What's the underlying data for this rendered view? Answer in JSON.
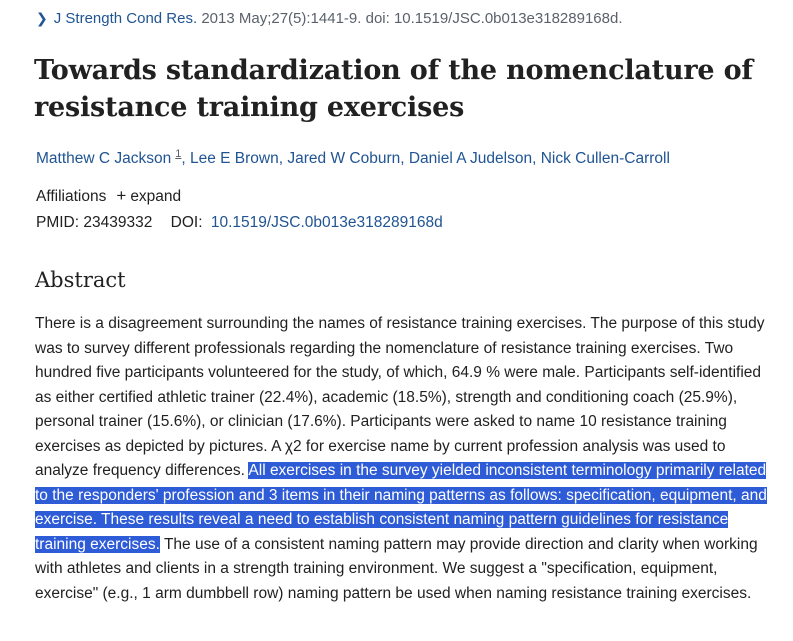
{
  "citation": {
    "chevron_icon": "chevron-right-icon",
    "journal": "J Strength Cond Res.",
    "details": "2013 May;27(5):1441-9. doi: 10.1519/JSC.0b013e318289168d."
  },
  "article": {
    "title": "Towards standardization of the nomenclature of resistance training exercises",
    "authors": [
      "Matthew C Jackson",
      "Lee E Brown",
      "Jared W Coburn",
      "Daniel A Judelson",
      "Nick Cullen-Carroll"
    ],
    "first_author_affiliation_ref": "1",
    "affiliations_label": "Affiliations",
    "expand_label": "expand",
    "pmid_label": "PMID:",
    "pmid": "23439332",
    "doi_label": "DOI:",
    "doi": "10.1519/JSC.0b013e318289168d"
  },
  "abstract": {
    "heading": "Abstract",
    "before_selection": "There is a disagreement surrounding the names of resistance training exercises. The purpose of this study was to survey different professionals regarding the nomenclature of resistance training exercises. Two hundred five participants volunteered for the study, of which, 64.9 % were male. Participants self-identified as either certified athletic trainer (22.4%), academic (18.5%), strength and conditioning coach (25.9%), personal trainer (15.6%), or clinician (17.6%). Participants were asked to name 10 resistance training exercises as depicted by pictures. A χ2 for exercise name by current profession analysis was used to analyze frequency differences. ",
    "selected": "All exercises in the survey yielded inconsistent terminology primarily related to the responders' profession and 3 items in their naming patterns as follows: specification, equipment, and exercise. These results reveal a need to establish consistent naming pattern guidelines for resistance training exercises.",
    "after_selection": " The use of a consistent naming pattern may provide direction and clarity when working with athletes and clients in a strength training environment. We suggest a \"specification, equipment, exercise\" (e.g., 1 arm dumbbell row) naming pattern be used when naming resistance training exercises."
  },
  "colors": {
    "link": "#205493",
    "selection": "#2e5bd6",
    "text": "#212121"
  }
}
